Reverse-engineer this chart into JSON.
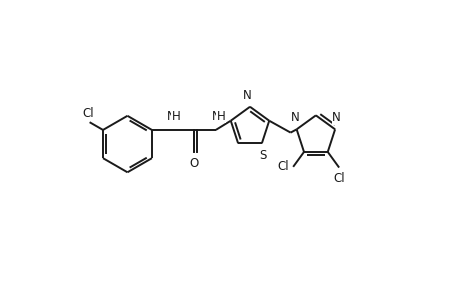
{
  "background": "#ffffff",
  "line_color": "#1a1a1a",
  "line_width": 1.4,
  "font_size": 8.5,
  "figsize": [
    4.6,
    3.0
  ],
  "dpi": 100,
  "xlim": [
    0.0,
    1.0
  ],
  "ylim": [
    0.0,
    1.0
  ]
}
